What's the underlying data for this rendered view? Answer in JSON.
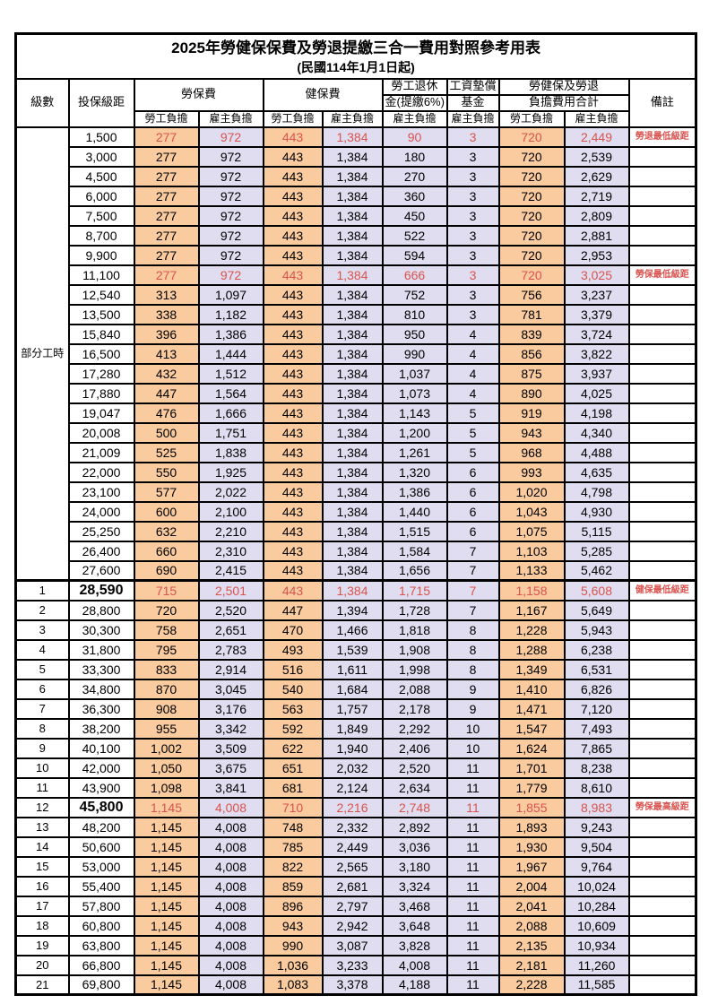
{
  "title": "2025年勞健保保費及勞退提繳三合一費用對照參考用表",
  "subtitle": "(民國114年1月1日起)",
  "colors": {
    "employee_column_bg": "#f9cb9e",
    "employer_column_bg": "#dfddef",
    "highlight_text": "#d9534f",
    "border": "#000000"
  },
  "header": {
    "level": "級數",
    "bracket": "投保級距",
    "labor_insurance": "勞保費",
    "health_insurance": "健保費",
    "pension_line1": "勞工退休",
    "pension_line2": "金(提繳6%)",
    "wage_fund_line1": "工資墊償",
    "wage_fund_line2": "基金",
    "total_line1": "勞健保及勞退",
    "total_line2": "負擔費用合計",
    "remark": "備註",
    "employee_share": "勞工負擔",
    "employer_share": "雇主負擔"
  },
  "part_time_label": "部分工時",
  "part_time_rowspan": 23,
  "rows": [
    {
      "level": "",
      "bracket": "1,500",
      "labor_emp": "277",
      "labor_er": "972",
      "health_emp": "443",
      "health_er": "1,384",
      "pension_er": "90",
      "fund_er": "3",
      "total_emp": "720",
      "total_er": "2,449",
      "remark": "勞退最低級距",
      "red": true,
      "big": false
    },
    {
      "level": "",
      "bracket": "3,000",
      "labor_emp": "277",
      "labor_er": "972",
      "health_emp": "443",
      "health_er": "1,384",
      "pension_er": "180",
      "fund_er": "3",
      "total_emp": "720",
      "total_er": "2,539",
      "remark": "",
      "red": false,
      "big": false
    },
    {
      "level": "",
      "bracket": "4,500",
      "labor_emp": "277",
      "labor_er": "972",
      "health_emp": "443",
      "health_er": "1,384",
      "pension_er": "270",
      "fund_er": "3",
      "total_emp": "720",
      "total_er": "2,629",
      "remark": "",
      "red": false,
      "big": false
    },
    {
      "level": "",
      "bracket": "6,000",
      "labor_emp": "277",
      "labor_er": "972",
      "health_emp": "443",
      "health_er": "1,384",
      "pension_er": "360",
      "fund_er": "3",
      "total_emp": "720",
      "total_er": "2,719",
      "remark": "",
      "red": false,
      "big": false
    },
    {
      "level": "",
      "bracket": "7,500",
      "labor_emp": "277",
      "labor_er": "972",
      "health_emp": "443",
      "health_er": "1,384",
      "pension_er": "450",
      "fund_er": "3",
      "total_emp": "720",
      "total_er": "2,809",
      "remark": "",
      "red": false,
      "big": false
    },
    {
      "level": "",
      "bracket": "8,700",
      "labor_emp": "277",
      "labor_er": "972",
      "health_emp": "443",
      "health_er": "1,384",
      "pension_er": "522",
      "fund_er": "3",
      "total_emp": "720",
      "total_er": "2,881",
      "remark": "",
      "red": false,
      "big": false
    },
    {
      "level": "",
      "bracket": "9,900",
      "labor_emp": "277",
      "labor_er": "972",
      "health_emp": "443",
      "health_er": "1,384",
      "pension_er": "594",
      "fund_er": "3",
      "total_emp": "720",
      "total_er": "2,953",
      "remark": "",
      "red": false,
      "big": false
    },
    {
      "level": "",
      "bracket": "11,100",
      "labor_emp": "277",
      "labor_er": "972",
      "health_emp": "443",
      "health_er": "1,384",
      "pension_er": "666",
      "fund_er": "3",
      "total_emp": "720",
      "total_er": "3,025",
      "remark": "勞保最低級距",
      "red": true,
      "big": false
    },
    {
      "level": "",
      "bracket": "12,540",
      "labor_emp": "313",
      "labor_er": "1,097",
      "health_emp": "443",
      "health_er": "1,384",
      "pension_er": "752",
      "fund_er": "3",
      "total_emp": "756",
      "total_er": "3,237",
      "remark": "",
      "red": false,
      "big": false
    },
    {
      "level": "",
      "bracket": "13,500",
      "labor_emp": "338",
      "labor_er": "1,182",
      "health_emp": "443",
      "health_er": "1,384",
      "pension_er": "810",
      "fund_er": "3",
      "total_emp": "781",
      "total_er": "3,379",
      "remark": "",
      "red": false,
      "big": false
    },
    {
      "level": "",
      "bracket": "15,840",
      "labor_emp": "396",
      "labor_er": "1,386",
      "health_emp": "443",
      "health_er": "1,384",
      "pension_er": "950",
      "fund_er": "4",
      "total_emp": "839",
      "total_er": "3,724",
      "remark": "",
      "red": false,
      "big": false
    },
    {
      "level": "",
      "bracket": "16,500",
      "labor_emp": "413",
      "labor_er": "1,444",
      "health_emp": "443",
      "health_er": "1,384",
      "pension_er": "990",
      "fund_er": "4",
      "total_emp": "856",
      "total_er": "3,822",
      "remark": "",
      "red": false,
      "big": false
    },
    {
      "level": "",
      "bracket": "17,280",
      "labor_emp": "432",
      "labor_er": "1,512",
      "health_emp": "443",
      "health_er": "1,384",
      "pension_er": "1,037",
      "fund_er": "4",
      "total_emp": "875",
      "total_er": "3,937",
      "remark": "",
      "red": false,
      "big": false
    },
    {
      "level": "",
      "bracket": "17,880",
      "labor_emp": "447",
      "labor_er": "1,564",
      "health_emp": "443",
      "health_er": "1,384",
      "pension_er": "1,073",
      "fund_er": "4",
      "total_emp": "890",
      "total_er": "4,025",
      "remark": "",
      "red": false,
      "big": false
    },
    {
      "level": "",
      "bracket": "19,047",
      "labor_emp": "476",
      "labor_er": "1,666",
      "health_emp": "443",
      "health_er": "1,384",
      "pension_er": "1,143",
      "fund_er": "5",
      "total_emp": "919",
      "total_er": "4,198",
      "remark": "",
      "red": false,
      "big": false
    },
    {
      "level": "",
      "bracket": "20,008",
      "labor_emp": "500",
      "labor_er": "1,751",
      "health_emp": "443",
      "health_er": "1,384",
      "pension_er": "1,200",
      "fund_er": "5",
      "total_emp": "943",
      "total_er": "4,340",
      "remark": "",
      "red": false,
      "big": false
    },
    {
      "level": "",
      "bracket": "21,009",
      "labor_emp": "525",
      "labor_er": "1,838",
      "health_emp": "443",
      "health_er": "1,384",
      "pension_er": "1,261",
      "fund_er": "5",
      "total_emp": "968",
      "total_er": "4,488",
      "remark": "",
      "red": false,
      "big": false
    },
    {
      "level": "",
      "bracket": "22,000",
      "labor_emp": "550",
      "labor_er": "1,925",
      "health_emp": "443",
      "health_er": "1,384",
      "pension_er": "1,320",
      "fund_er": "6",
      "total_emp": "993",
      "total_er": "4,635",
      "remark": "",
      "red": false,
      "big": false
    },
    {
      "level": "",
      "bracket": "23,100",
      "labor_emp": "577",
      "labor_er": "2,022",
      "health_emp": "443",
      "health_er": "1,384",
      "pension_er": "1,386",
      "fund_er": "6",
      "total_emp": "1,020",
      "total_er": "4,798",
      "remark": "",
      "red": false,
      "big": false
    },
    {
      "level": "",
      "bracket": "24,000",
      "labor_emp": "600",
      "labor_er": "2,100",
      "health_emp": "443",
      "health_er": "1,384",
      "pension_er": "1,440",
      "fund_er": "6",
      "total_emp": "1,043",
      "total_er": "4,930",
      "remark": "",
      "red": false,
      "big": false
    },
    {
      "level": "",
      "bracket": "25,250",
      "labor_emp": "632",
      "labor_er": "2,210",
      "health_emp": "443",
      "health_er": "1,384",
      "pension_er": "1,515",
      "fund_er": "6",
      "total_emp": "1,075",
      "total_er": "5,115",
      "remark": "",
      "red": false,
      "big": false
    },
    {
      "level": "",
      "bracket": "26,400",
      "labor_emp": "660",
      "labor_er": "2,310",
      "health_emp": "443",
      "health_er": "1,384",
      "pension_er": "1,584",
      "fund_er": "7",
      "total_emp": "1,103",
      "total_er": "5,285",
      "remark": "",
      "red": false,
      "big": false
    },
    {
      "level": "",
      "bracket": "27,600",
      "labor_emp": "690",
      "labor_er": "2,415",
      "health_emp": "443",
      "health_er": "1,384",
      "pension_er": "1,656",
      "fund_er": "7",
      "total_emp": "1,133",
      "total_er": "5,462",
      "remark": "",
      "red": false,
      "big": false
    },
    {
      "level": "1",
      "bracket": "28,590",
      "labor_emp": "715",
      "labor_er": "2,501",
      "health_emp": "443",
      "health_er": "1,384",
      "pension_er": "1,715",
      "fund_er": "7",
      "total_emp": "1,158",
      "total_er": "5,608",
      "remark": "健保最低級距",
      "red": true,
      "big": true
    },
    {
      "level": "2",
      "bracket": "28,800",
      "labor_emp": "720",
      "labor_er": "2,520",
      "health_emp": "447",
      "health_er": "1,394",
      "pension_er": "1,728",
      "fund_er": "7",
      "total_emp": "1,167",
      "total_er": "5,649",
      "remark": "",
      "red": false,
      "big": false
    },
    {
      "level": "3",
      "bracket": "30,300",
      "labor_emp": "758",
      "labor_er": "2,651",
      "health_emp": "470",
      "health_er": "1,466",
      "pension_er": "1,818",
      "fund_er": "8",
      "total_emp": "1,228",
      "total_er": "5,943",
      "remark": "",
      "red": false,
      "big": false
    },
    {
      "level": "4",
      "bracket": "31,800",
      "labor_emp": "795",
      "labor_er": "2,783",
      "health_emp": "493",
      "health_er": "1,539",
      "pension_er": "1,908",
      "fund_er": "8",
      "total_emp": "1,288",
      "total_er": "6,238",
      "remark": "",
      "red": false,
      "big": false
    },
    {
      "level": "5",
      "bracket": "33,300",
      "labor_emp": "833",
      "labor_er": "2,914",
      "health_emp": "516",
      "health_er": "1,611",
      "pension_er": "1,998",
      "fund_er": "8",
      "total_emp": "1,349",
      "total_er": "6,531",
      "remark": "",
      "red": false,
      "big": false
    },
    {
      "level": "6",
      "bracket": "34,800",
      "labor_emp": "870",
      "labor_er": "3,045",
      "health_emp": "540",
      "health_er": "1,684",
      "pension_er": "2,088",
      "fund_er": "9",
      "total_emp": "1,410",
      "total_er": "6,826",
      "remark": "",
      "red": false,
      "big": false
    },
    {
      "level": "7",
      "bracket": "36,300",
      "labor_emp": "908",
      "labor_er": "3,176",
      "health_emp": "563",
      "health_er": "1,757",
      "pension_er": "2,178",
      "fund_er": "9",
      "total_emp": "1,471",
      "total_er": "7,120",
      "remark": "",
      "red": false,
      "big": false
    },
    {
      "level": "8",
      "bracket": "38,200",
      "labor_emp": "955",
      "labor_er": "3,342",
      "health_emp": "592",
      "health_er": "1,849",
      "pension_er": "2,292",
      "fund_er": "10",
      "total_emp": "1,547",
      "total_er": "7,493",
      "remark": "",
      "red": false,
      "big": false
    },
    {
      "level": "9",
      "bracket": "40,100",
      "labor_emp": "1,002",
      "labor_er": "3,509",
      "health_emp": "622",
      "health_er": "1,940",
      "pension_er": "2,406",
      "fund_er": "10",
      "total_emp": "1,624",
      "total_er": "7,865",
      "remark": "",
      "red": false,
      "big": false
    },
    {
      "level": "10",
      "bracket": "42,000",
      "labor_emp": "1,050",
      "labor_er": "3,675",
      "health_emp": "651",
      "health_er": "2,032",
      "pension_er": "2,520",
      "fund_er": "11",
      "total_emp": "1,701",
      "total_er": "8,238",
      "remark": "",
      "red": false,
      "big": false
    },
    {
      "level": "11",
      "bracket": "43,900",
      "labor_emp": "1,098",
      "labor_er": "3,841",
      "health_emp": "681",
      "health_er": "2,124",
      "pension_er": "2,634",
      "fund_er": "11",
      "total_emp": "1,779",
      "total_er": "8,610",
      "remark": "",
      "red": false,
      "big": false
    },
    {
      "level": "12",
      "bracket": "45,800",
      "labor_emp": "1,145",
      "labor_er": "4,008",
      "health_emp": "710",
      "health_er": "2,216",
      "pension_er": "2,748",
      "fund_er": "11",
      "total_emp": "1,855",
      "total_er": "8,983",
      "remark": "勞保最高級距",
      "red": true,
      "big": true
    },
    {
      "level": "13",
      "bracket": "48,200",
      "labor_emp": "1,145",
      "labor_er": "4,008",
      "health_emp": "748",
      "health_er": "2,332",
      "pension_er": "2,892",
      "fund_er": "11",
      "total_emp": "1,893",
      "total_er": "9,243",
      "remark": "",
      "red": false,
      "big": false
    },
    {
      "level": "14",
      "bracket": "50,600",
      "labor_emp": "1,145",
      "labor_er": "4,008",
      "health_emp": "785",
      "health_er": "2,449",
      "pension_er": "3,036",
      "fund_er": "11",
      "total_emp": "1,930",
      "total_er": "9,504",
      "remark": "",
      "red": false,
      "big": false
    },
    {
      "level": "15",
      "bracket": "53,000",
      "labor_emp": "1,145",
      "labor_er": "4,008",
      "health_emp": "822",
      "health_er": "2,565",
      "pension_er": "3,180",
      "fund_er": "11",
      "total_emp": "1,967",
      "total_er": "9,764",
      "remark": "",
      "red": false,
      "big": false
    },
    {
      "level": "16",
      "bracket": "55,400",
      "labor_emp": "1,145",
      "labor_er": "4,008",
      "health_emp": "859",
      "health_er": "2,681",
      "pension_er": "3,324",
      "fund_er": "11",
      "total_emp": "2,004",
      "total_er": "10,024",
      "remark": "",
      "red": false,
      "big": false
    },
    {
      "level": "17",
      "bracket": "57,800",
      "labor_emp": "1,145",
      "labor_er": "4,008",
      "health_emp": "896",
      "health_er": "2,797",
      "pension_er": "3,468",
      "fund_er": "11",
      "total_emp": "2,041",
      "total_er": "10,284",
      "remark": "",
      "red": false,
      "big": false
    },
    {
      "level": "18",
      "bracket": "60,800",
      "labor_emp": "1,145",
      "labor_er": "4,008",
      "health_emp": "943",
      "health_er": "2,942",
      "pension_er": "3,648",
      "fund_er": "11",
      "total_emp": "2,088",
      "total_er": "10,609",
      "remark": "",
      "red": false,
      "big": false
    },
    {
      "level": "19",
      "bracket": "63,800",
      "labor_emp": "1,145",
      "labor_er": "4,008",
      "health_emp": "990",
      "health_er": "3,087",
      "pension_er": "3,828",
      "fund_er": "11",
      "total_emp": "2,135",
      "total_er": "10,934",
      "remark": "",
      "red": false,
      "big": false
    },
    {
      "level": "20",
      "bracket": "66,800",
      "labor_emp": "1,145",
      "labor_er": "4,008",
      "health_emp": "1,036",
      "health_er": "3,233",
      "pension_er": "4,008",
      "fund_er": "11",
      "total_emp": "2,181",
      "total_er": "11,260",
      "remark": "",
      "red": false,
      "big": false
    },
    {
      "level": "21",
      "bracket": "69,800",
      "labor_emp": "1,145",
      "labor_er": "4,008",
      "health_emp": "1,083",
      "health_er": "3,378",
      "pension_er": "4,188",
      "fund_er": "11",
      "total_emp": "2,228",
      "total_er": "11,585",
      "remark": "",
      "red": false,
      "big": false
    }
  ]
}
